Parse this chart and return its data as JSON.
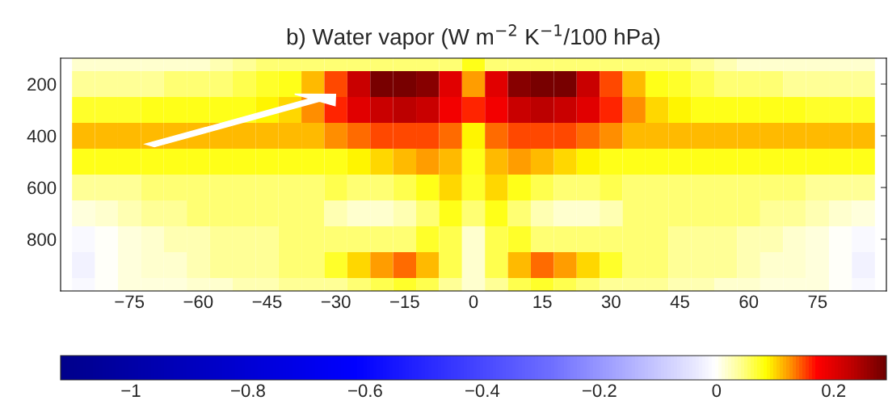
{
  "chart_data": {
    "type": "heatmap",
    "title": "b) Water vapor (W m$^{−2}$ K$^{−1}$/100 hPa)",
    "x": [
      -85,
      -80,
      -75,
      -70,
      -65,
      -60,
      -55,
      -50,
      -45,
      -40,
      -35,
      -30,
      -25,
      -20,
      -15,
      -10,
      -5,
      0,
      5,
      10,
      15,
      20,
      25,
      30,
      35,
      40,
      45,
      50,
      55,
      60,
      65,
      70,
      75,
      80,
      85
    ],
    "y": [
      100,
      200,
      300,
      400,
      500,
      600,
      700,
      800,
      900,
      1000
    ],
    "cells": [
      [
        0.02,
        0.02,
        0.02,
        0.02,
        0.02,
        0.02,
        0.03,
        0.04,
        0.05,
        0.05,
        0.05,
        0.05,
        0.05,
        0.05,
        0.05,
        0.05,
        0.05,
        0.08,
        0.05,
        0.05,
        0.05,
        0.05,
        0.05,
        0.05,
        0.05,
        0.05,
        0.05,
        0.04,
        0.03,
        0.02,
        0.02,
        0.02,
        0.02,
        0.02,
        0.02
      ],
      [
        0.04,
        0.04,
        0.04,
        0.04,
        0.05,
        0.05,
        0.05,
        0.06,
        0.07,
        0.08,
        0.11,
        0.15,
        0.22,
        0.28,
        0.28,
        0.27,
        0.2,
        0.12,
        0.2,
        0.27,
        0.28,
        0.28,
        0.22,
        0.15,
        0.11,
        0.08,
        0.07,
        0.06,
        0.05,
        0.05,
        0.05,
        0.04,
        0.04,
        0.04,
        0.04
      ],
      [
        0.07,
        0.07,
        0.07,
        0.08,
        0.08,
        0.08,
        0.08,
        0.08,
        0.09,
        0.1,
        0.13,
        0.16,
        0.2,
        0.22,
        0.23,
        0.22,
        0.18,
        0.16,
        0.18,
        0.22,
        0.23,
        0.22,
        0.2,
        0.16,
        0.13,
        0.1,
        0.09,
        0.08,
        0.08,
        0.08,
        0.08,
        0.08,
        0.07,
        0.07,
        0.07
      ],
      [
        0.11,
        0.11,
        0.11,
        0.11,
        0.11,
        0.11,
        0.11,
        0.11,
        0.11,
        0.11,
        0.11,
        0.13,
        0.14,
        0.15,
        0.15,
        0.15,
        0.14,
        0.09,
        0.14,
        0.15,
        0.15,
        0.15,
        0.14,
        0.13,
        0.11,
        0.11,
        0.11,
        0.11,
        0.11,
        0.11,
        0.11,
        0.11,
        0.11,
        0.11,
        0.11
      ],
      [
        0.08,
        0.08,
        0.08,
        0.08,
        0.08,
        0.08,
        0.08,
        0.08,
        0.08,
        0.08,
        0.08,
        0.08,
        0.09,
        0.1,
        0.11,
        0.12,
        0.11,
        0.08,
        0.11,
        0.12,
        0.11,
        0.1,
        0.09,
        0.08,
        0.08,
        0.08,
        0.08,
        0.08,
        0.08,
        0.08,
        0.08,
        0.08,
        0.08,
        0.08,
        0.08
      ],
      [
        0.04,
        0.04,
        0.04,
        0.05,
        0.05,
        0.05,
        0.05,
        0.05,
        0.05,
        0.05,
        0.05,
        0.06,
        0.05,
        0.05,
        0.06,
        0.08,
        0.1,
        0.07,
        0.1,
        0.08,
        0.06,
        0.05,
        0.05,
        0.06,
        0.05,
        0.05,
        0.05,
        0.05,
        0.05,
        0.05,
        0.05,
        0.05,
        0.04,
        0.04,
        0.04
      ],
      [
        0.01,
        0.02,
        0.03,
        0.04,
        0.04,
        0.05,
        0.05,
        0.05,
        0.05,
        0.05,
        0.05,
        0.03,
        0.02,
        0.02,
        0.03,
        0.05,
        0.08,
        0.05,
        0.08,
        0.05,
        0.03,
        0.02,
        0.02,
        0.03,
        0.05,
        0.05,
        0.05,
        0.05,
        0.05,
        0.05,
        0.04,
        0.04,
        0.03,
        0.02,
        0.01
      ],
      [
        -0.01,
        0,
        0.01,
        0.02,
        0.03,
        0.03,
        0.04,
        0.04,
        0.04,
        0.05,
        0.05,
        0.05,
        0.05,
        0.05,
        0.05,
        0.07,
        0.06,
        0.02,
        0.06,
        0.07,
        0.05,
        0.05,
        0.05,
        0.05,
        0.05,
        0.05,
        0.04,
        0.04,
        0.04,
        0.03,
        0.03,
        0.02,
        0.01,
        0,
        -0.01
      ],
      [
        -0.02,
        0,
        0.01,
        0.02,
        0.02,
        0.03,
        0.04,
        0.04,
        0.04,
        0.05,
        0.05,
        0.07,
        0.1,
        0.12,
        0.14,
        0.11,
        0.06,
        0.02,
        0.06,
        0.11,
        0.14,
        0.12,
        0.1,
        0.07,
        0.05,
        0.05,
        0.04,
        0.04,
        0.04,
        0.03,
        0.02,
        0.02,
        0.01,
        0,
        -0.02
      ],
      [
        -0.01,
        0,
        0.01,
        0.01,
        0.01,
        0.02,
        0.02,
        0.03,
        0.03,
        0.04,
        0.04,
        0.04,
        0.05,
        0.06,
        0.07,
        0.06,
        0.04,
        0.02,
        0.04,
        0.06,
        0.07,
        0.06,
        0.05,
        0.04,
        0.04,
        0.04,
        0.03,
        0.03,
        0.02,
        0.02,
        0.01,
        0.01,
        0.01,
        0,
        -0.01
      ]
    ],
    "xlim": [
      -90,
      90
    ],
    "xticks": [
      {
        "value": -75,
        "label": "−75"
      },
      {
        "value": -60,
        "label": "−60"
      },
      {
        "value": -45,
        "label": "−45"
      },
      {
        "value": -30,
        "label": "−30"
      },
      {
        "value": -15,
        "label": "−15"
      },
      0,
      15,
      30,
      45,
      60,
      75
    ],
    "ylim": [
      1000,
      100
    ],
    "yticks": [
      200,
      400,
      600,
      800
    ],
    "clim": [
      -1.12,
      0.29
    ],
    "cticks": [
      {
        "value": -1,
        "label": "−1"
      },
      {
        "value": -0.8,
        "label": "−0.8"
      },
      {
        "value": -0.6,
        "label": "−0.6"
      },
      {
        "value": -0.4,
        "label": "−0.4"
      },
      {
        "value": -0.2,
        "label": "−0.2"
      },
      0,
      0.2
    ],
    "grid": false
  }
}
